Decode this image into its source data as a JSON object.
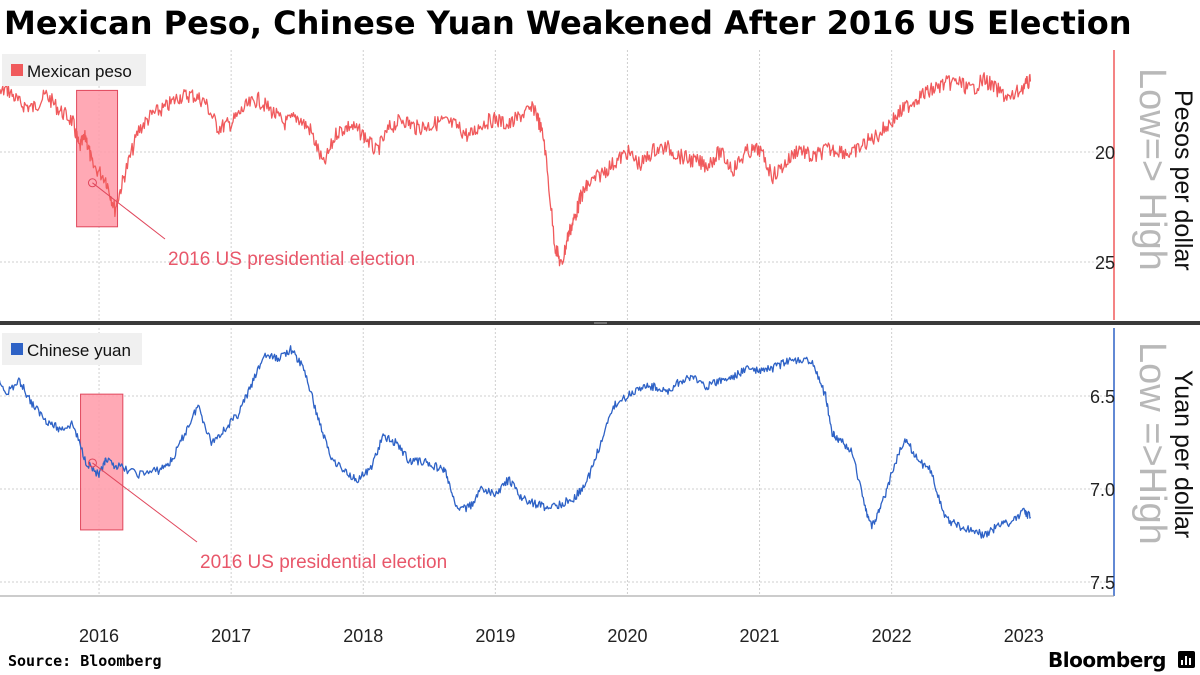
{
  "title": "Mexican Peso, Chinese Yuan Weakened After 2016 US Election",
  "source": "Source: Bloomberg",
  "brand": "Bloomberg",
  "brand_icon": "bar-chart-icon",
  "colors": {
    "peso": "#f05a5c",
    "yuan": "#2e62c6",
    "annotation_fill": "#ff9aa8",
    "annotation_stroke": "#e0475c",
    "annotation_text": "#e8576a",
    "watermark": "#b8b8b8"
  },
  "chart_data": [
    {
      "type": "line",
      "series": [
        {
          "name": "Mexican peso"
        }
      ],
      "ylabel": "Pesos per dollar",
      "axis_note": "Low=> High",
      "y_ticks": [
        20,
        25
      ],
      "ylim": [
        15.8,
        28
      ],
      "y_inverted": true,
      "annotation": {
        "text": "2016 US presidential election",
        "x_range": [
          2016.33,
          2016.64
        ],
        "y_range": [
          17.2,
          23.4
        ]
      },
      "x": [
        2015.5,
        2015.6,
        2015.7,
        2015.8,
        2015.9,
        2016.0,
        2016.1,
        2016.2,
        2016.3,
        2016.35,
        2016.4,
        2016.45,
        2016.55,
        2016.62,
        2016.7,
        2016.8,
        2016.9,
        2017.0,
        2017.1,
        2017.2,
        2017.3,
        2017.4,
        2017.5,
        2017.6,
        2017.7,
        2017.8,
        2017.9,
        2018.0,
        2018.1,
        2018.2,
        2018.3,
        2018.4,
        2018.5,
        2018.6,
        2018.7,
        2018.8,
        2018.9,
        2019.0,
        2019.1,
        2019.2,
        2019.3,
        2019.4,
        2019.5,
        2019.6,
        2019.7,
        2019.8,
        2019.87,
        2019.95,
        2020.0,
        2020.05,
        2020.1,
        2020.15,
        2020.2,
        2020.3,
        2020.4,
        2020.5,
        2020.6,
        2020.7,
        2020.8,
        2020.9,
        2021.0,
        2021.1,
        2021.2,
        2021.3,
        2021.4,
        2021.5,
        2021.6,
        2021.7,
        2021.8,
        2021.9,
        2022.0,
        2022.1,
        2022.2,
        2022.3,
        2022.4,
        2022.5,
        2022.6,
        2022.7,
        2022.8,
        2022.9,
        2023.0,
        2023.1,
        2023.2,
        2023.3,
        2023.4,
        2023.5,
        2023.55
      ],
      "values": [
        16.5,
        16.8,
        17.6,
        17.1,
        17.8,
        18.0,
        17.4,
        18.1,
        18.6,
        19.8,
        19.3,
        20.6,
        21.2,
        22.6,
        20.9,
        19.0,
        18.3,
        18.0,
        17.5,
        17.4,
        17.7,
        18.9,
        18.7,
        18.0,
        17.6,
        18.1,
        18.7,
        18.4,
        19.0,
        20.6,
        19.1,
        18.8,
        19.2,
        20.0,
        18.9,
        18.5,
        18.9,
        18.8,
        18.6,
        18.8,
        19.3,
        18.7,
        18.5,
        18.8,
        18.3,
        18.0,
        19.5,
        24.2,
        25.2,
        23.8,
        23.0,
        22.0,
        21.5,
        21.0,
        20.5,
        20.0,
        20.6,
        19.9,
        19.8,
        20.2,
        20.4,
        20.6,
        20.0,
        20.8,
        20.0,
        19.9,
        21.1,
        20.5,
        19.8,
        20.3,
        19.9,
        19.9,
        20.1,
        19.6,
        19.2,
        18.6,
        18.0,
        17.5,
        17.2,
        16.9,
        16.8,
        17.2,
        16.7,
        17.2,
        17.6,
        17.0,
        16.8
      ]
    },
    {
      "type": "line",
      "series": [
        {
          "name": "Chinese yuan"
        }
      ],
      "ylabel": "Yuan per dollar",
      "axis_note": "Low =>High",
      "y_ticks": [
        6.5,
        7.0,
        7.5
      ],
      "ylim": [
        6.15,
        7.55
      ],
      "y_inverted": true,
      "annotation": {
        "text": "2016 US presidential election",
        "x_range": [
          2016.36,
          2016.68
        ],
        "y_range": [
          6.49,
          7.22
        ]
      },
      "x": [
        2015.5,
        2015.6,
        2015.7,
        2015.8,
        2015.9,
        2016.0,
        2016.1,
        2016.2,
        2016.3,
        2016.4,
        2016.5,
        2016.55,
        2016.65,
        2016.8,
        2016.95,
        2017.05,
        2017.15,
        2017.25,
        2017.35,
        2017.45,
        2017.55,
        2017.65,
        2017.75,
        2017.85,
        2017.95,
        2018.05,
        2018.15,
        2018.25,
        2018.35,
        2018.45,
        2018.55,
        2018.65,
        2018.75,
        2018.85,
        2018.95,
        2019.05,
        2019.12,
        2019.2,
        2019.3,
        2019.4,
        2019.5,
        2019.6,
        2019.7,
        2019.8,
        2019.9,
        2020.0,
        2020.1,
        2020.2,
        2020.3,
        2020.4,
        2020.5,
        2020.6,
        2020.7,
        2020.8,
        2020.9,
        2021.0,
        2021.1,
        2021.2,
        2021.3,
        2021.4,
        2021.5,
        2021.6,
        2021.7,
        2021.8,
        2021.9,
        2022.0,
        2022.05,
        2022.1,
        2022.2,
        2022.3,
        2022.35,
        2022.42,
        2022.5,
        2022.6,
        2022.7,
        2022.8,
        2022.9,
        2023.0,
        2023.1,
        2023.2,
        2023.3,
        2023.4,
        2023.5,
        2023.55
      ],
      "values": [
        6.2,
        6.3,
        6.38,
        6.48,
        6.42,
        6.55,
        6.63,
        6.68,
        6.65,
        6.85,
        6.93,
        6.85,
        6.88,
        6.92,
        6.9,
        6.85,
        6.7,
        6.55,
        6.75,
        6.68,
        6.6,
        6.45,
        6.28,
        6.3,
        6.25,
        6.35,
        6.6,
        6.82,
        6.9,
        6.95,
        6.9,
        6.72,
        6.75,
        6.85,
        6.85,
        6.88,
        6.9,
        7.1,
        7.1,
        7.0,
        7.03,
        6.95,
        7.05,
        7.08,
        7.1,
        7.08,
        7.05,
        6.95,
        6.75,
        6.55,
        6.5,
        6.45,
        6.45,
        6.48,
        6.42,
        6.4,
        6.45,
        6.42,
        6.4,
        6.35,
        6.37,
        6.35,
        6.32,
        6.3,
        6.32,
        6.5,
        6.7,
        6.73,
        6.8,
        7.1,
        7.2,
        7.1,
        6.92,
        6.72,
        6.85,
        6.9,
        7.15,
        7.2,
        7.22,
        7.25,
        7.2,
        7.18,
        7.12,
        7.15
      ]
    }
  ],
  "x_ticks": [
    2016,
    2017,
    2018,
    2019,
    2020,
    2021,
    2022,
    2023
  ]
}
